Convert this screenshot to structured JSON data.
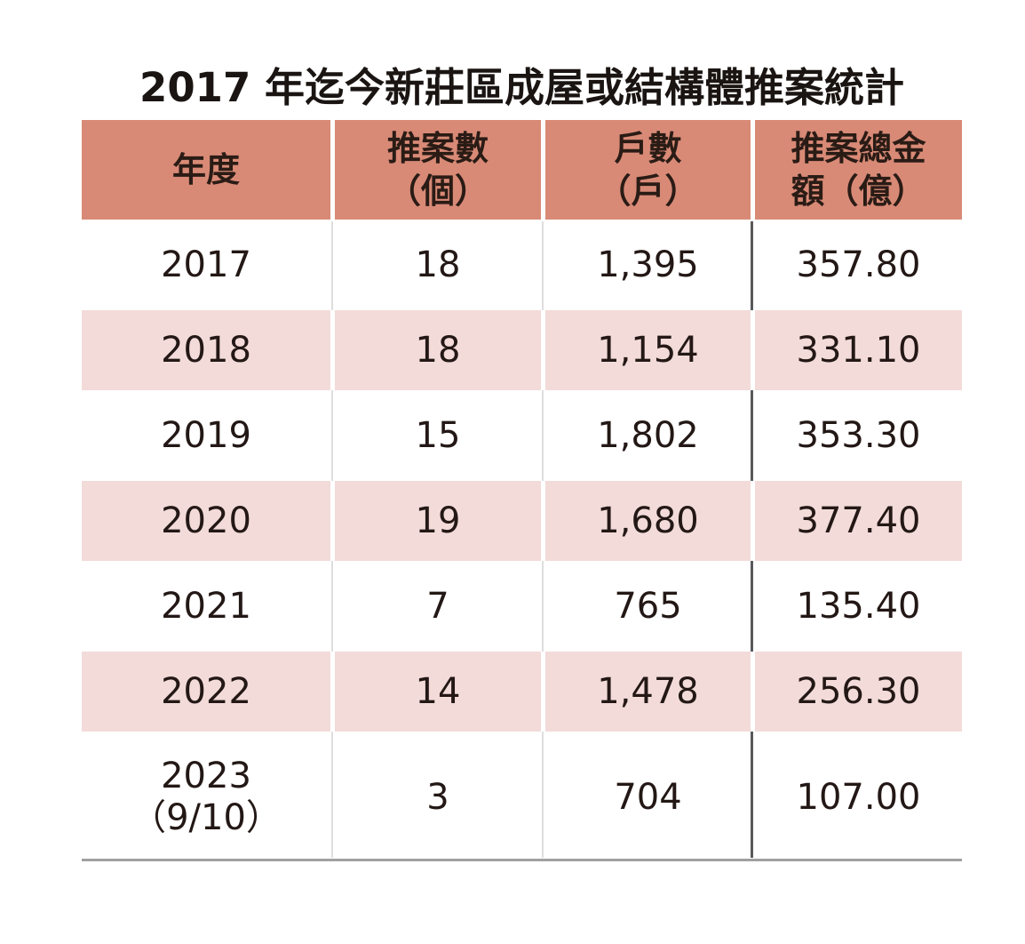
{
  "title": "2017 年迄今新莊區成屋或結構體推案統計",
  "header": {
    "col1": {
      "line1": "年度"
    },
    "col2": {
      "line1": "推案數",
      "line2": "（個）"
    },
    "col3": {
      "line1": "戶數",
      "line2": "（戶）"
    },
    "col4": {
      "line1": "推案總金",
      "line2": "額（億）"
    }
  },
  "rows": [
    {
      "year": "2017",
      "cases": "18",
      "units": "1,395",
      "amount": "357.80"
    },
    {
      "year": "2018",
      "cases": "18",
      "units": "1,154",
      "amount": "331.10"
    },
    {
      "year": "2019",
      "cases": "15",
      "units": "1,802",
      "amount": "353.30"
    },
    {
      "year": "2020",
      "cases": "19",
      "units": "1,680",
      "amount": "377.40"
    },
    {
      "year": "2021",
      "cases": "7",
      "units": "765",
      "amount": "135.40"
    },
    {
      "year": "2022",
      "cases": "14",
      "units": "1,478",
      "amount": "256.30"
    },
    {
      "year": "2023",
      "year2": "（9/10）",
      "cases": "3",
      "units": "704",
      "amount": "107.00"
    }
  ],
  "colors": {
    "header_bg": "#d88a76",
    "stripe_bg": "#f2dbd9",
    "text": "#231815",
    "light_rule": "#dedede",
    "dark_rule": "#58595b",
    "bottom_rule": "#9fa0a0"
  },
  "chart_data": {
    "type": "table",
    "title": "2017 年迄今新莊區成屋或結構體推案統計",
    "columns": [
      "年度",
      "推案數（個）",
      "戶數（戶）",
      "推案總金額（億）"
    ],
    "rows": [
      [
        "2017",
        18,
        1395,
        357.8
      ],
      [
        "2018",
        18,
        1154,
        331.1
      ],
      [
        "2019",
        15,
        1802,
        353.3
      ],
      [
        "2020",
        19,
        1680,
        377.4
      ],
      [
        "2021",
        7,
        765,
        135.4
      ],
      [
        "2022",
        14,
        1478,
        256.3
      ],
      [
        "2023（9/10）",
        3,
        704,
        107.0
      ]
    ],
    "layout": {
      "striped_rows": [
        1,
        3,
        5
      ],
      "header_fill": "#d88a76",
      "stripe_fill": "#f2dbd9"
    }
  }
}
